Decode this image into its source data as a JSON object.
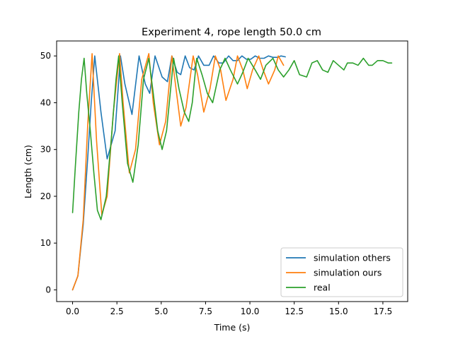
{
  "chart_data": {
    "type": "line",
    "title": "Experiment 4, rope length 50.0 cm",
    "xlabel": "Time (s)",
    "ylabel": "Length (cm)",
    "xlim": [
      -0.9,
      18.9
    ],
    "ylim": [
      -2.5,
      53.2
    ],
    "xticks": [
      0.0,
      2.5,
      5.0,
      7.5,
      10.0,
      12.5,
      15.0,
      17.5
    ],
    "xtick_labels": [
      "0.0",
      "2.5",
      "5.0",
      "7.5",
      "10.0",
      "12.5",
      "15.0",
      "17.5"
    ],
    "yticks": [
      0,
      10,
      20,
      30,
      40,
      50
    ],
    "ytick_labels": [
      "0",
      "10",
      "20",
      "30",
      "40",
      "50"
    ],
    "legend_position": "lower-right",
    "series": [
      {
        "name": "simulation others",
        "color": "#1f77b4",
        "x": [
          0,
          0.3,
          0.6,
          0.85,
          1.05,
          1.25,
          1.6,
          1.95,
          2.4,
          2.7,
          2.95,
          3.35,
          3.75,
          4.1,
          4.35,
          4.65,
          5.05,
          5.35,
          5.6,
          5.9,
          6.1,
          6.35,
          6.6,
          6.85,
          7.1,
          7.4,
          7.7,
          7.95,
          8.25,
          8.5,
          8.8,
          9.05,
          9.3,
          9.55,
          9.8,
          10.05,
          10.3,
          10.55,
          10.8,
          11.05,
          11.3,
          11.55,
          11.75,
          12.0
        ],
        "y": [
          0,
          3,
          14,
          28,
          40,
          50,
          38,
          28,
          34,
          50,
          44,
          37.5,
          50,
          44,
          42,
          50,
          45.5,
          44.5,
          50,
          46.5,
          46,
          50,
          47.5,
          47,
          50,
          48,
          48,
          50,
          48.5,
          48.5,
          50,
          49,
          49,
          50,
          49.3,
          49.3,
          50,
          49.5,
          49.5,
          50,
          49.7,
          49.7,
          50,
          49.8
        ]
      },
      {
        "name": "simulation ours",
        "color": "#ff7f0e",
        "x": [
          0,
          0.3,
          0.6,
          0.85,
          1.1,
          1.35,
          1.65,
          1.95,
          2.3,
          2.65,
          2.85,
          3.2,
          3.55,
          3.9,
          4.3,
          4.55,
          4.9,
          5.25,
          5.6,
          5.8,
          6.1,
          6.4,
          6.8,
          7.05,
          7.4,
          7.75,
          8.05,
          8.35,
          8.65,
          9.05,
          9.3,
          9.6,
          9.85,
          10.15,
          10.5,
          10.75,
          11.05,
          11.4,
          11.6,
          11.9
        ],
        "y": [
          0,
          3,
          15,
          35,
          50.5,
          32,
          16,
          20,
          38,
          50.5,
          40,
          25,
          30,
          45,
          50.5,
          40,
          31,
          36,
          50,
          44,
          35,
          39,
          50,
          46,
          38,
          43,
          50,
          47,
          40.5,
          45,
          50,
          47,
          43,
          47,
          50,
          47,
          44,
          47,
          50,
          48
        ]
      },
      {
        "name": "real",
        "color": "#2ca02c",
        "x": [
          0,
          0.15,
          0.35,
          0.5,
          0.65,
          0.8,
          1.0,
          1.2,
          1.4,
          1.6,
          1.9,
          2.2,
          2.45,
          2.6,
          2.8,
          3.1,
          3.4,
          3.7,
          4.0,
          4.3,
          4.55,
          4.8,
          5.05,
          5.3,
          5.7,
          6.0,
          6.3,
          6.55,
          6.75,
          7.0,
          7.3,
          7.6,
          7.9,
          8.3,
          8.6,
          8.9,
          9.3,
          9.6,
          9.9,
          10.3,
          10.6,
          10.9,
          11.3,
          11.6,
          11.9,
          12.2,
          12.5,
          12.8,
          13.2,
          13.5,
          13.8,
          14.1,
          14.4,
          14.7,
          15.0,
          15.3,
          15.5,
          15.8,
          16.1,
          16.4,
          16.7,
          16.9,
          17.2,
          17.5,
          17.8,
          18.0
        ],
        "y": [
          16.5,
          26,
          38,
          45,
          49.5,
          42,
          34,
          25,
          17,
          15,
          20,
          33,
          45,
          50,
          40,
          27,
          23,
          31,
          45,
          49.5,
          42,
          34,
          30,
          34,
          49.5,
          43,
          38,
          36,
          40,
          49.5,
          46,
          42,
          40,
          47,
          49.5,
          47,
          44,
          46.5,
          49.5,
          47,
          45,
          48,
          49.5,
          47,
          45.5,
          47,
          49,
          46,
          45.5,
          48.5,
          49,
          47,
          46.5,
          49,
          48,
          47,
          48.5,
          48.5,
          48,
          49.5,
          48,
          48,
          49,
          49,
          48.5,
          48.5
        ]
      }
    ]
  }
}
